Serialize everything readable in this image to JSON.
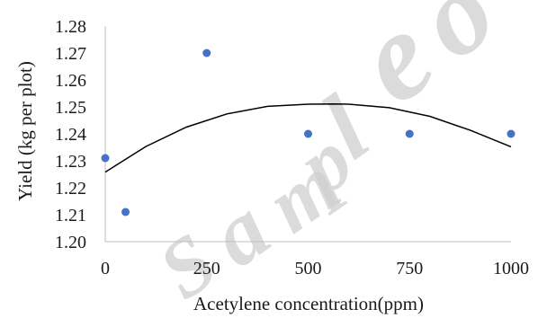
{
  "chart_data": {
    "type": "scatter",
    "title": "",
    "xlabel": "Acetylene concentration(ppm)",
    "ylabel": "Yield (kg per plot)",
    "xlim": [
      0,
      1000
    ],
    "ylim": [
      1.2,
      1.28
    ],
    "x_ticks": [
      "0",
      "250",
      "500",
      "750",
      "1000"
    ],
    "y_ticks": [
      "1.20",
      "1.21",
      "1.22",
      "1.23",
      "1.24",
      "1.25",
      "1.26",
      "1.27",
      "1.28"
    ],
    "grid": false,
    "legend": "none",
    "series": [
      {
        "points": [
          {
            "x": 0,
            "y": 1.231
          },
          {
            "x": 50,
            "y": 1.211
          },
          {
            "x": 250,
            "y": 1.27
          },
          {
            "x": 500,
            "y": 1.24
          },
          {
            "x": 750,
            "y": 1.24
          },
          {
            "x": 1000,
            "y": 1.24
          }
        ],
        "color": "#4472C4"
      }
    ],
    "trendline": {
      "type": "polynomial-2",
      "x": [
        0,
        100,
        200,
        300,
        400,
        500,
        560,
        600,
        700,
        800,
        900,
        1000
      ],
      "y": [
        1.2258,
        1.2353,
        1.2425,
        1.2474,
        1.2502,
        1.251,
        1.2511,
        1.251,
        1.2497,
        1.2465,
        1.2413,
        1.2352
      ],
      "color": "#000000"
    }
  },
  "watermark": {
    "text": "Sample of Sci",
    "color": "#cfcfcf"
  }
}
